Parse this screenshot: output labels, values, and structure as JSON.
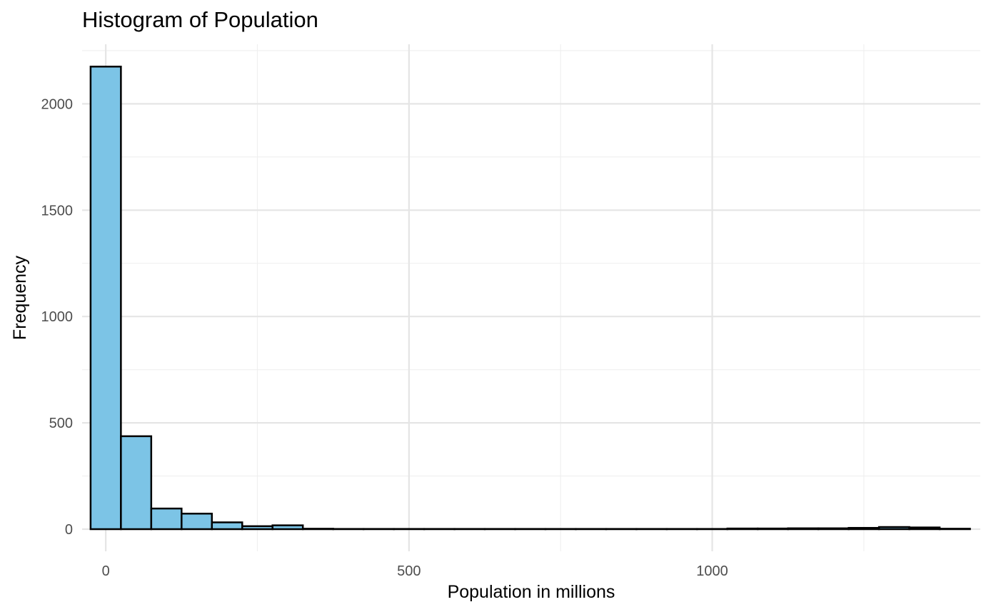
{
  "chart_data": {
    "type": "bar",
    "title": "Histogram of Population",
    "xlabel": "Population in millions",
    "ylabel": "Frequency",
    "fill_color": "#7cc4e6",
    "edge_color": "#000000",
    "grid": true,
    "xlim": [
      -39,
      1442
    ],
    "ylim": [
      0,
      2280
    ],
    "x_ticks": [
      {
        "value": 0,
        "label": "0"
      },
      {
        "value": 500,
        "label": "500"
      },
      {
        "value": 1000,
        "label": "1000"
      }
    ],
    "x_minor_ticks": [
      -250,
      250,
      750,
      1250
    ],
    "y_ticks": [
      {
        "value": 0,
        "label": "0"
      },
      {
        "value": 500,
        "label": "500"
      },
      {
        "value": 1000,
        "label": "1000"
      },
      {
        "value": 1500,
        "label": "1500"
      },
      {
        "value": 2000,
        "label": "2000"
      }
    ],
    "y_minor_ticks": [
      250,
      750,
      1250,
      1750,
      2250
    ],
    "bin_width": 50,
    "bins": [
      {
        "start": -25,
        "end": 25,
        "count": 2175
      },
      {
        "start": 25,
        "end": 75,
        "count": 437
      },
      {
        "start": 75,
        "end": 125,
        "count": 97
      },
      {
        "start": 125,
        "end": 175,
        "count": 73
      },
      {
        "start": 175,
        "end": 225,
        "count": 32
      },
      {
        "start": 225,
        "end": 275,
        "count": 14
      },
      {
        "start": 275,
        "end": 325,
        "count": 18
      },
      {
        "start": 325,
        "end": 375,
        "count": 2
      },
      {
        "start": 375,
        "end": 425,
        "count": 1
      },
      {
        "start": 425,
        "end": 475,
        "count": 1
      },
      {
        "start": 475,
        "end": 525,
        "count": 1
      },
      {
        "start": 525,
        "end": 575,
        "count": 1
      },
      {
        "start": 575,
        "end": 625,
        "count": 1
      },
      {
        "start": 625,
        "end": 675,
        "count": 1
      },
      {
        "start": 675,
        "end": 725,
        "count": 1
      },
      {
        "start": 725,
        "end": 775,
        "count": 1
      },
      {
        "start": 775,
        "end": 825,
        "count": 1
      },
      {
        "start": 825,
        "end": 875,
        "count": 1
      },
      {
        "start": 875,
        "end": 925,
        "count": 1
      },
      {
        "start": 925,
        "end": 975,
        "count": 1
      },
      {
        "start": 975,
        "end": 1025,
        "count": 1
      },
      {
        "start": 1025,
        "end": 1075,
        "count": 3
      },
      {
        "start": 1075,
        "end": 1125,
        "count": 3
      },
      {
        "start": 1125,
        "end": 1175,
        "count": 4
      },
      {
        "start": 1175,
        "end": 1225,
        "count": 4
      },
      {
        "start": 1225,
        "end": 1275,
        "count": 6
      },
      {
        "start": 1275,
        "end": 1325,
        "count": 10
      },
      {
        "start": 1325,
        "end": 1375,
        "count": 8
      },
      {
        "start": 1375,
        "end": 1425,
        "count": 2
      }
    ]
  }
}
